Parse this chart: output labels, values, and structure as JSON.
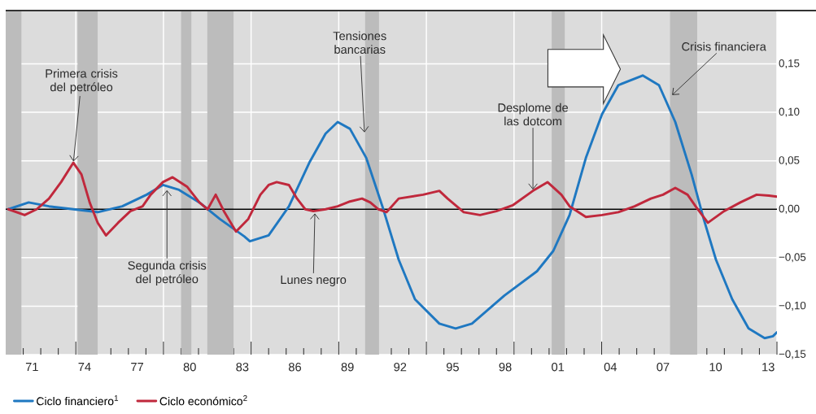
{
  "chart_data": {
    "type": "line",
    "series": [
      {
        "name": "Ciclo financiero$^{1}$",
        "color": "#1f78c1",
        "x": [
          1969.65,
          1970.81,
          1971.97,
          1973.36,
          1974.75,
          1976.15,
          1977.54,
          1978.47,
          1979.39,
          1980.55,
          1981.71,
          1983.11,
          1983.43,
          1984.5,
          1985.66,
          1986.82,
          1987.75,
          1988.44,
          1989.14,
          1990.07,
          1990.99,
          1991.92,
          1992.85,
          1994.24,
          1995.17,
          1996.1,
          1997.95,
          1999.81,
          2000.74,
          2001.67,
          2002.6,
          2003.52,
          2004.45,
          2005.84,
          2006.77,
          2007.7,
          2008.63,
          2009.32,
          2010.02,
          2010.95,
          2011.88,
          2012.8,
          2013.27,
          2013.5
        ],
        "values": [
          0,
          0.007,
          0.003,
          0,
          -0.003,
          0.003,
          0.015,
          0.025,
          0.02,
          0.007,
          -0.01,
          -0.028,
          -0.033,
          -0.027,
          0.003,
          0.048,
          0.078,
          0.09,
          0.083,
          0.053,
          0.003,
          -0.052,
          -0.093,
          -0.118,
          -0.123,
          -0.118,
          -0.089,
          -0.064,
          -0.043,
          -0.006,
          0.053,
          0.098,
          0.128,
          0.138,
          0.128,
          0.09,
          0.036,
          -0.01,
          -0.052,
          -0.093,
          -0.123,
          -0.133,
          -0.131,
          -0.127
        ]
      },
      {
        "name": "Ciclo económico$^{2}$",
        "color": "#c0283c",
        "x": [
          1969.65,
          1970.58,
          1971.27,
          1971.97,
          1972.66,
          1973.36,
          1973.82,
          1974.29,
          1974.75,
          1975.22,
          1975.91,
          1976.61,
          1977.31,
          1977.77,
          1978.47,
          1979.02,
          1979.86,
          1980.55,
          1981.02,
          1981.48,
          1981.95,
          1982.64,
          1983.34,
          1984.03,
          1984.5,
          1984.96,
          1985.66,
          1986.12,
          1986.59,
          1987.05,
          1987.75,
          1988.44,
          1989.14,
          1989.83,
          1990.3,
          1990.76,
          1991.23,
          1991.92,
          1993.31,
          1994.24,
          1994.71,
          1995.63,
          1996.56,
          1997.49,
          1998.42,
          1999.58,
          2000.41,
          2001.2,
          2001.67,
          2002.6,
          2003.52,
          2004.45,
          2005.38,
          2006.31,
          2007.0,
          2007.7,
          2008.4,
          2008.86,
          2009.56,
          2010.48,
          2011.41,
          2012.34,
          2013.04,
          2013.5
        ],
        "values": [
          0,
          -0.006,
          0,
          0.011,
          0.028,
          0.048,
          0.036,
          0.007,
          -0.014,
          -0.027,
          -0.014,
          -0.002,
          0.003,
          0.015,
          0.028,
          0.033,
          0.023,
          0.007,
          0,
          0.015,
          -0.002,
          -0.023,
          -0.01,
          0.015,
          0.025,
          0.028,
          0.025,
          0.011,
          0,
          -0.002,
          0,
          0.003,
          0.008,
          0.011,
          0.007,
          0,
          -0.003,
          0.011,
          0.015,
          0.019,
          0.011,
          -0.003,
          -0.006,
          -0.002,
          0.004,
          0.019,
          0.028,
          0.015,
          0.003,
          -0.008,
          -0.006,
          -0.003,
          0.003,
          0.011,
          0.015,
          0.022,
          0.015,
          0.003,
          -0.014,
          -0.002,
          0.007,
          0.015,
          0.014,
          0.013
        ]
      }
    ],
    "xlim": [
      1969.5,
      2013.5
    ],
    "ylim": [
      -0.15,
      0.205
    ],
    "xticks": [
      {
        "value": 1973.5,
        "label": null
      },
      {
        "value": 1978.5,
        "label": null
      },
      {
        "value": 1983.5,
        "label": null
      },
      {
        "value": 1988.5,
        "label": null
      },
      {
        "value": 1993.5,
        "label": null
      },
      {
        "value": 1998.5,
        "label": null
      },
      {
        "value": 2003.5,
        "label": null
      },
      {
        "value": 2008.5,
        "label": null
      },
      {
        "value": 2013.5,
        "label": null
      },
      {
        "value": 1971,
        "label": "71"
      },
      {
        "value": 1974,
        "label": "74"
      },
      {
        "value": 1977,
        "label": "77"
      },
      {
        "value": 1980,
        "label": "80"
      },
      {
        "value": 1983,
        "label": "83"
      },
      {
        "value": 1986,
        "label": "86"
      },
      {
        "value": 1989,
        "label": "89"
      },
      {
        "value": 1992,
        "label": "92"
      },
      {
        "value": 1995,
        "label": "95"
      },
      {
        "value": 1998,
        "label": "98"
      },
      {
        "value": 2001,
        "label": "01"
      },
      {
        "value": 2004,
        "label": "04"
      },
      {
        "value": 2007,
        "label": "07"
      },
      {
        "value": 2010,
        "label": "10"
      },
      {
        "value": 2013,
        "label": "13"
      }
    ],
    "yticks": [
      {
        "value": 0.15,
        "label": "0,15"
      },
      {
        "value": 0.1,
        "label": "0,10"
      },
      {
        "value": 0.05,
        "label": "0,05"
      },
      {
        "value": 0,
        "label": "0,00"
      },
      {
        "value": -0.05,
        "label": "−0,05"
      },
      {
        "value": -0.1,
        "label": "−0,10"
      },
      {
        "value": -0.15,
        "label": "−0,15"
      }
    ],
    "grid": true,
    "legend": "bottom left",
    "bands": [
      {
        "axis": "x",
        "from": 1969.5,
        "to": 1970.4,
        "color": "#bcbcbc"
      },
      {
        "axis": "x",
        "from": 1973.6,
        "to": 1974.75,
        "color": "#bcbcbc"
      },
      {
        "axis": "x",
        "from": 1979.5,
        "to": 1980.1,
        "color": "#bcbcbc"
      },
      {
        "axis": "x",
        "from": 1981.0,
        "to": 1982.5,
        "color": "#bcbcbc"
      },
      {
        "axis": "x",
        "from": 1990.0,
        "to": 1990.8,
        "color": "#bcbcbc"
      },
      {
        "axis": "x",
        "from": 2000.65,
        "to": 2001.4,
        "color": "#bcbcbc"
      },
      {
        "axis": "x",
        "from": 2007.4,
        "to": 2008.95,
        "color": "#bcbcbc"
      }
    ],
    "ref_lines": [
      {
        "axis": "y",
        "value": 0,
        "color": "#000000"
      }
    ],
    "annotations": [
      {
        "text": "Primera crisis del petróleo",
        "x": 1973.36,
        "y": 0.048
      },
      {
        "text": "Segunda crisis del petróleo",
        "x": 1978.7,
        "y": 0.021
      },
      {
        "text": "Tensiones bancarias",
        "x": 1989.97,
        "y": 0.078
      },
      {
        "text": "Lunes negro",
        "x": 1987.14,
        "y": -0.003
      },
      {
        "text": "Desplome de las dotcom",
        "x": 1999.58,
        "y": 0.019
      },
      {
        "text": "Crisis financiera",
        "x": 2007.47,
        "y": 0.117
      }
    ]
  }
}
